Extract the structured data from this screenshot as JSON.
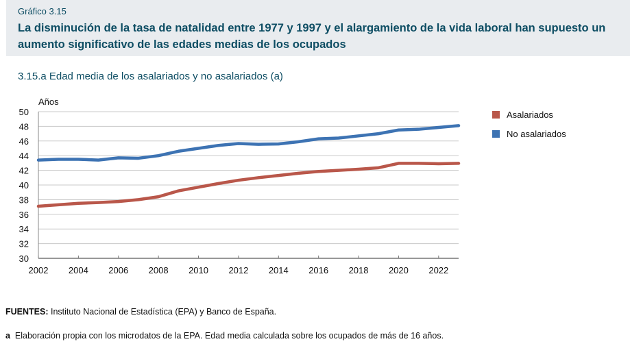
{
  "header": {
    "kicker": "Gráfico 3.15",
    "title": "La disminución de la tasa de natalidad entre 1977 y 1997 y el alargamiento de la vida laboral han supuesto un aumento significativo de las edades medias de los ocupados"
  },
  "chart_data": {
    "type": "line",
    "title": "3.15.a  Edad media de los asalariados y no asalariados (a)",
    "ylabel": "Años",
    "ylim": [
      30,
      50
    ],
    "yticks": [
      30,
      32,
      34,
      36,
      38,
      40,
      42,
      44,
      46,
      48,
      50
    ],
    "xticks": [
      2002,
      2004,
      2006,
      2008,
      2010,
      2012,
      2014,
      2016,
      2018,
      2020,
      2022
    ],
    "xlim": [
      2002,
      2023
    ],
    "grid": true,
    "legend_position": "right",
    "x": [
      2002,
      2003,
      2004,
      2005,
      2006,
      2007,
      2008,
      2009,
      2010,
      2011,
      2012,
      2013,
      2014,
      2015,
      2016,
      2017,
      2018,
      2019,
      2020,
      2021,
      2022,
      2023
    ],
    "series": [
      {
        "name": "Asalariados",
        "color": "#b9574a",
        "values": [
          37.1,
          37.3,
          37.5,
          37.6,
          37.75,
          38.0,
          38.4,
          39.2,
          39.7,
          40.2,
          40.65,
          41.0,
          41.3,
          41.6,
          41.85,
          42.0,
          42.15,
          42.35,
          42.95,
          42.95,
          42.9,
          42.95
        ]
      },
      {
        "name": "No asalariados",
        "color": "#3d73b3",
        "values": [
          43.4,
          43.5,
          43.5,
          43.4,
          43.7,
          43.65,
          44.0,
          44.6,
          45.0,
          45.4,
          45.65,
          45.55,
          45.6,
          45.9,
          46.3,
          46.4,
          46.7,
          47.0,
          47.5,
          47.6,
          47.85,
          48.1
        ]
      }
    ]
  },
  "footer": {
    "sources_label": "FUENTES:",
    "sources": "Instituto Nacional de Estadística (EPA) y Banco de España.",
    "note_label": "a",
    "note": "Elaboración propia con los microdatos de la EPA. Edad media calculada sobre los ocupados de más de 16 años."
  }
}
